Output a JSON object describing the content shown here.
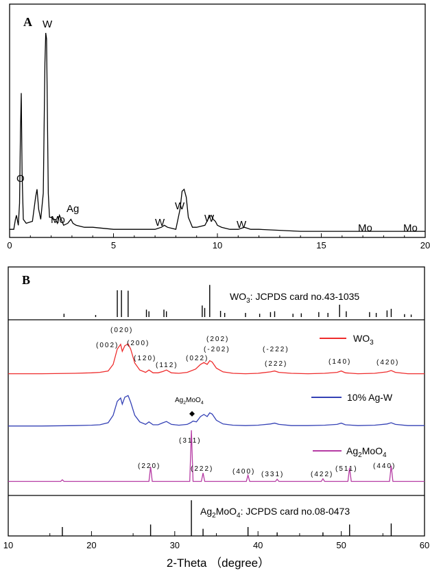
{
  "chart_data": [
    {
      "panel_label": "A",
      "type": "line",
      "xlim": [
        0,
        20
      ],
      "x_ticks": [
        "0",
        "5",
        "10",
        "15",
        "20"
      ],
      "series": [
        {
          "x": [
            0.0,
            0.2,
            0.28,
            0.33,
            0.42,
            0.48,
            0.52,
            0.56,
            0.6,
            0.66,
            0.8,
            1.1,
            1.25,
            1.32,
            1.4,
            1.5,
            1.62,
            1.7,
            1.74,
            1.78,
            1.82,
            1.86,
            1.92,
            2.0,
            2.1,
            2.2,
            2.3,
            2.4,
            2.6,
            2.8,
            2.95,
            3.05,
            3.2,
            3.6,
            4.0,
            5.0,
            6.0,
            7.0,
            7.3,
            7.45,
            7.6,
            8.0,
            8.2,
            8.3,
            8.4,
            8.5,
            8.6,
            8.8,
            9.0,
            9.4,
            9.6,
            9.7,
            9.8,
            9.9,
            10.0,
            10.2,
            10.6,
            11.0,
            11.3,
            11.6,
            12.0,
            14.0,
            16.0,
            17.0,
            18.0,
            19.0,
            19.8,
            20.0
          ],
          "y": [
            2,
            2,
            7,
            9,
            4,
            15,
            50,
            70,
            30,
            7,
            5,
            6,
            18,
            22,
            12,
            7,
            20,
            85,
            100,
            97,
            60,
            20,
            8,
            8,
            7,
            7,
            5,
            9,
            4,
            5,
            7,
            5,
            4,
            3,
            3,
            2,
            2,
            2,
            3,
            4,
            3,
            2,
            12,
            21,
            22,
            18,
            8,
            3,
            3,
            4,
            8,
            9,
            7,
            6,
            4,
            3,
            2,
            2,
            3,
            2,
            2,
            1,
            1,
            1,
            1,
            1,
            1,
            1
          ]
        }
      ],
      "annotations": [
        {
          "text": "W",
          "x": 1.78
        },
        {
          "text": "O",
          "x": 0.56
        },
        {
          "text": "Mo",
          "x": 2.3
        },
        {
          "text": "Ag",
          "x": 2.98
        },
        {
          "text": "W",
          "x": 7.4
        },
        {
          "text": "W",
          "x": 8.4
        },
        {
          "text": "W",
          "x": 9.7
        },
        {
          "text": "W",
          "x": 11.3
        },
        {
          "text": "Mo",
          "x": 17.5
        },
        {
          "text": "Mo",
          "x": 19.6
        }
      ]
    },
    {
      "panel_label": "B",
      "type": "line",
      "xlim": [
        10,
        60
      ],
      "xlabel": "2-Theta （degree）",
      "x_ticks": [
        "10",
        "20",
        "30",
        "40",
        "50",
        "60"
      ],
      "reference_cards": [
        {
          "label": "WO3: JCPDS card no.43-1035",
          "label_main": "WO",
          "label_sub": "3",
          "label_rest": ": JCPDS card no.43-1035",
          "sticks": [
            {
              "x": 16.7,
              "h": 0.08
            },
            {
              "x": 20.5,
              "h": 0.05
            },
            {
              "x": 23.1,
              "h": 0.65
            },
            {
              "x": 23.6,
              "h": 0.65
            },
            {
              "x": 24.4,
              "h": 0.64
            },
            {
              "x": 26.6,
              "h": 0.18
            },
            {
              "x": 26.9,
              "h": 0.14
            },
            {
              "x": 28.7,
              "h": 0.18
            },
            {
              "x": 29.0,
              "h": 0.14
            },
            {
              "x": 33.3,
              "h": 0.28
            },
            {
              "x": 33.6,
              "h": 0.22
            },
            {
              "x": 34.2,
              "h": 0.78
            },
            {
              "x": 35.5,
              "h": 0.15
            },
            {
              "x": 36.0,
              "h": 0.1
            },
            {
              "x": 38.5,
              "h": 0.1
            },
            {
              "x": 40.2,
              "h": 0.08
            },
            {
              "x": 41.5,
              "h": 0.12
            },
            {
              "x": 42.0,
              "h": 0.14
            },
            {
              "x": 44.2,
              "h": 0.08
            },
            {
              "x": 45.2,
              "h": 0.09
            },
            {
              "x": 47.3,
              "h": 0.12
            },
            {
              "x": 48.4,
              "h": 0.1
            },
            {
              "x": 49.8,
              "h": 0.3
            },
            {
              "x": 50.6,
              "h": 0.14
            },
            {
              "x": 53.4,
              "h": 0.12
            },
            {
              "x": 54.2,
              "h": 0.1
            },
            {
              "x": 55.5,
              "h": 0.16
            },
            {
              "x": 56.0,
              "h": 0.2
            },
            {
              "x": 57.6,
              "h": 0.07
            },
            {
              "x": 58.4,
              "h": 0.06
            }
          ]
        },
        {
          "label": "Ag2MoO4: JCPDS card no.08-0473",
          "label_main": "Ag",
          "label_sub": "2",
          "label_mid": "MoO",
          "label_sub2": "4",
          "label_rest": ": JCPDS card no.08-0473",
          "sticks": [
            {
              "x": 16.5,
              "h": 0.25
            },
            {
              "x": 27.1,
              "h": 0.32
            },
            {
              "x": 32.0,
              "h": 1.0
            },
            {
              "x": 33.4,
              "h": 0.2
            },
            {
              "x": 38.8,
              "h": 0.25
            },
            {
              "x": 42.3,
              "h": 0.1
            },
            {
              "x": 47.8,
              "h": 0.1
            },
            {
              "x": 51.0,
              "h": 0.32
            },
            {
              "x": 56.0,
              "h": 0.35
            }
          ]
        }
      ],
      "series": [
        {
          "name": "WO3",
          "name_main": "WO",
          "name_sub": "3",
          "color": "#ee2b2b",
          "x": [
            10,
            14,
            18,
            20,
            21,
            22,
            22.6,
            23.1,
            23.5,
            23.7,
            24.0,
            24.4,
            24.7,
            25.2,
            25.8,
            26.5,
            26.9,
            27.4,
            28.0,
            28.6,
            29.0,
            29.6,
            30.5,
            31.5,
            32.5,
            33.1,
            33.5,
            33.9,
            34.2,
            34.5,
            35.0,
            35.8,
            37,
            38.5,
            40,
            41.5,
            42,
            42.5,
            44,
            46,
            48,
            49.5,
            50,
            50.5,
            52,
            54,
            55.5,
            56,
            56.5,
            58,
            60
          ],
          "y": [
            0.02,
            0.02,
            0.03,
            0.04,
            0.05,
            0.08,
            0.22,
            0.55,
            0.65,
            0.5,
            0.62,
            0.66,
            0.55,
            0.25,
            0.1,
            0.05,
            0.1,
            0.04,
            0.04,
            0.07,
            0.1,
            0.04,
            0.03,
            0.05,
            0.12,
            0.22,
            0.26,
            0.22,
            0.3,
            0.27,
            0.14,
            0.06,
            0.03,
            0.02,
            0.03,
            0.06,
            0.08,
            0.05,
            0.03,
            0.02,
            0.03,
            0.05,
            0.08,
            0.04,
            0.02,
            0.03,
            0.06,
            0.09,
            0.05,
            0.02,
            0.02
          ]
        },
        {
          "name": "10% Ag-W",
          "color": "#3340b5",
          "x": [
            10,
            14,
            18,
            20,
            21,
            22,
            22.6,
            23.1,
            23.5,
            23.7,
            24.0,
            24.4,
            24.7,
            25.2,
            25.8,
            26.5,
            26.9,
            27.4,
            28.0,
            28.6,
            29.0,
            29.6,
            30.5,
            31.5,
            31.9,
            32.2,
            32.6,
            33.1,
            33.5,
            33.9,
            34.2,
            34.5,
            35.0,
            35.8,
            37,
            38.5,
            40,
            41.5,
            42,
            42.5,
            44,
            46,
            48,
            49.5,
            50,
            50.5,
            52,
            54,
            55.5,
            56,
            56.5,
            58,
            60
          ],
          "y": [
            0.02,
            0.02,
            0.03,
            0.04,
            0.05,
            0.1,
            0.28,
            0.62,
            0.7,
            0.55,
            0.72,
            0.76,
            0.6,
            0.28,
            0.12,
            0.06,
            0.12,
            0.05,
            0.05,
            0.1,
            0.13,
            0.06,
            0.04,
            0.06,
            0.1,
            0.14,
            0.12,
            0.25,
            0.3,
            0.25,
            0.34,
            0.31,
            0.16,
            0.07,
            0.04,
            0.03,
            0.04,
            0.07,
            0.09,
            0.06,
            0.03,
            0.03,
            0.04,
            0.06,
            0.09,
            0.05,
            0.03,
            0.04,
            0.07,
            0.1,
            0.06,
            0.03,
            0.03
          ]
        },
        {
          "name": "Ag2MoO4",
          "name_main": "Ag",
          "name_sub": "2",
          "name_mid": "MoO",
          "name_sub2": "4",
          "color": "#b53aa3",
          "x": [
            10,
            16.3,
            16.5,
            16.7,
            20,
            26.9,
            27.1,
            27.3,
            31.8,
            32.0,
            32.2,
            33.2,
            33.4,
            33.6,
            38.6,
            38.8,
            39.0,
            42.1,
            42.3,
            42.5,
            47.6,
            47.8,
            48.0,
            50.8,
            51.0,
            51.2,
            55.8,
            56.0,
            56.2,
            60
          ],
          "y": [
            0.02,
            0.02,
            0.05,
            0.02,
            0.02,
            0.02,
            0.3,
            0.02,
            0.02,
            1.0,
            0.02,
            0.02,
            0.18,
            0.02,
            0.02,
            0.14,
            0.02,
            0.02,
            0.06,
            0.02,
            0.02,
            0.07,
            0.02,
            0.02,
            0.28,
            0.02,
            0.02,
            0.32,
            0.02,
            0.02
          ]
        }
      ],
      "hkl_wo3": [
        "(002)",
        "(020)",
        "(200)",
        "(120)",
        "(112)",
        "(022)",
        "(-202)",
        "(202)",
        "(-222)",
        "(222)",
        "(140)",
        "(420)"
      ],
      "hkl_ag2moo4": [
        "(220)",
        "(311)",
        "(222)",
        "(400)",
        "(331)",
        "(422)",
        "(511)",
        "(440)"
      ],
      "marker_label_main": "Ag",
      "marker_label_sub": "2",
      "marker_label_mid": "MoO",
      "marker_label_sub2": "4"
    }
  ]
}
